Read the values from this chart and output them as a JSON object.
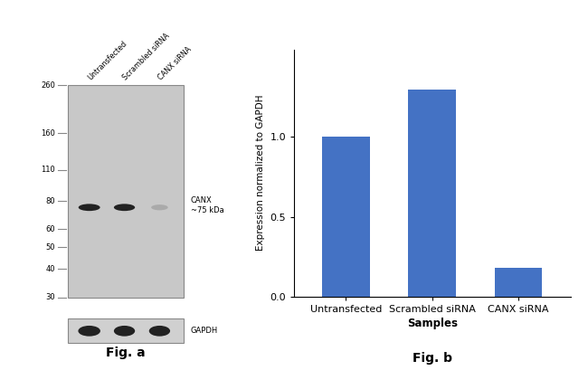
{
  "fig_a": {
    "ladder_labels": [
      "260",
      "160",
      "110",
      "80",
      "60",
      "50",
      "40",
      "30"
    ],
    "ladder_kda": [
      260,
      160,
      110,
      80,
      60,
      50,
      40,
      30
    ],
    "lane_labels": [
      "Untransfected",
      "Scrambled siRNA",
      "CANX siRNA"
    ],
    "canx_band_label": "CANX\n~75 kDa",
    "gapdh_label": "GAPDH",
    "fig_label": "Fig. a",
    "gel_bg_color": "#c8c8c8",
    "gapdh_bg_color": "#d0d0d0",
    "band_dark": "#222222",
    "band_mid": "#999999",
    "ladder_tick_color": "#888888",
    "border_color": "#888888"
  },
  "fig_b": {
    "categories": [
      "Untransfected",
      "Scrambled siRNA",
      "CANX siRNA"
    ],
    "values": [
      1.0,
      1.3,
      0.18
    ],
    "bar_color": "#4472C4",
    "ylabel": "Expression normalized to GAPDH",
    "xlabel": "Samples",
    "yticks": [
      0,
      0.5,
      1.0
    ],
    "ylim": [
      0,
      1.55
    ],
    "fig_label": "Fig. b",
    "bar_width": 0.55
  },
  "background_color": "#ffffff",
  "fig_label_fontsize": 10,
  "fig_label_fontweight": "bold"
}
